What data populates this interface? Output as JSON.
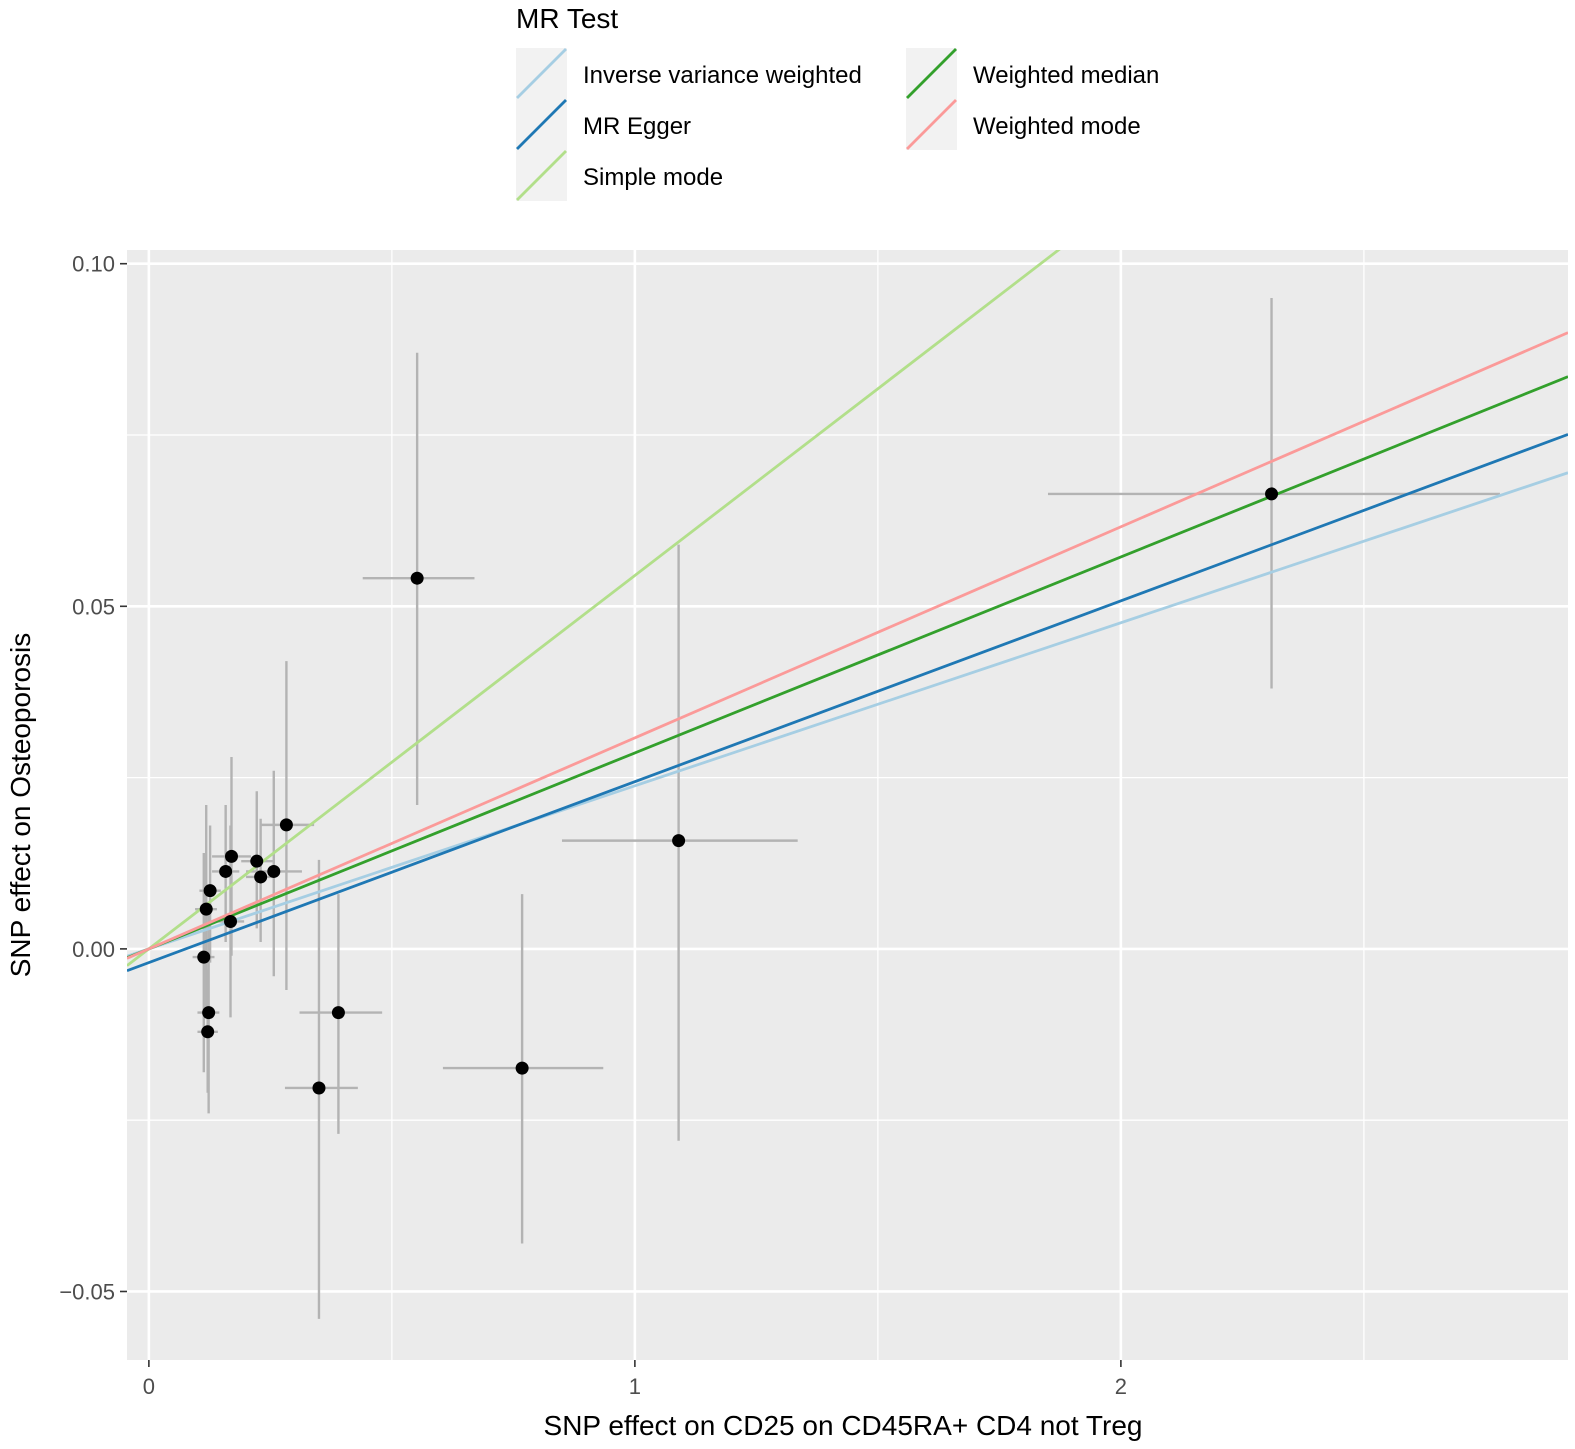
{
  "chart_data": {
    "type": "scatter",
    "xlabel": "SNP effect on CD25 on CD45RA+ CD4 not Treg",
    "ylabel": "SNP effect on Osteoporosis",
    "xlim": [
      -0.045,
      2.92
    ],
    "ylim": [
      -0.06,
      0.102
    ],
    "x_ticks": [
      0,
      1,
      2
    ],
    "x_tick_labels": [
      "0",
      "1",
      "2"
    ],
    "x_minor_ticks": [
      0.5,
      1.5,
      2.5
    ],
    "y_ticks": [
      -0.05,
      0.0,
      0.05,
      0.1
    ],
    "y_tick_labels": [
      "−0.05",
      "0.00",
      "0.05",
      "0.10"
    ],
    "y_minor_ticks": [
      -0.025,
      0.025,
      0.075
    ],
    "grid": true,
    "legend": {
      "title": "MR Test",
      "position": "top",
      "columns": [
        [
          "Inverse variance weighted",
          "MR Egger",
          "Simple mode"
        ],
        [
          "Weighted median",
          "Weighted mode"
        ]
      ]
    },
    "lines": [
      {
        "name": "Inverse variance weighted",
        "color": "#a6cee3",
        "intercept": 0.0,
        "slope": 0.0238
      },
      {
        "name": "MR Egger",
        "color": "#1f78b4",
        "intercept": -0.002,
        "slope": 0.0264
      },
      {
        "name": "Simple mode",
        "color": "#b2df8a",
        "intercept": 0.0,
        "slope": 0.0545
      },
      {
        "name": "Weighted median",
        "color": "#33a02c",
        "intercept": 0.0,
        "slope": 0.0286
      },
      {
        "name": "Weighted mode",
        "color": "#fb9a99",
        "intercept": 0.0,
        "slope": 0.0308
      }
    ],
    "points": [
      {
        "x": 0.113,
        "y": -0.0012,
        "x_lo": 0.09,
        "x_hi": 0.135,
        "y_lo": -0.018,
        "y_hi": 0.014
      },
      {
        "x": 0.118,
        "y": 0.0058,
        "x_lo": 0.095,
        "x_hi": 0.14,
        "y_lo": -0.009,
        "y_hi": 0.021
      },
      {
        "x": 0.123,
        "y": -0.0093,
        "x_lo": 0.1,
        "x_hi": 0.145,
        "y_lo": -0.024,
        "y_hi": 0.006
      },
      {
        "x": 0.121,
        "y": -0.0121,
        "x_lo": 0.1,
        "x_hi": 0.142,
        "y_lo": -0.021,
        "y_hi": -0.003
      },
      {
        "x": 0.126,
        "y": 0.0085,
        "x_lo": 0.104,
        "x_hi": 0.148,
        "y_lo": -0.002,
        "y_hi": 0.018
      },
      {
        "x": 0.158,
        "y": 0.0113,
        "x_lo": 0.13,
        "x_hi": 0.186,
        "y_lo": 0.001,
        "y_hi": 0.021
      },
      {
        "x": 0.17,
        "y": 0.0135,
        "x_lo": 0.13,
        "x_hi": 0.21,
        "y_lo": -0.001,
        "y_hi": 0.028
      },
      {
        "x": 0.168,
        "y": 0.004,
        "x_lo": 0.14,
        "x_hi": 0.196,
        "y_lo": -0.01,
        "y_hi": 0.018
      },
      {
        "x": 0.222,
        "y": 0.0128,
        "x_lo": 0.19,
        "x_hi": 0.255,
        "y_lo": 0.003,
        "y_hi": 0.023
      },
      {
        "x": 0.23,
        "y": 0.0105,
        "x_lo": 0.2,
        "x_hi": 0.26,
        "y_lo": 0.001,
        "y_hi": 0.019
      },
      {
        "x": 0.257,
        "y": 0.0113,
        "x_lo": 0.2,
        "x_hi": 0.315,
        "y_lo": -0.004,
        "y_hi": 0.026
      },
      {
        "x": 0.283,
        "y": 0.0181,
        "x_lo": 0.23,
        "x_hi": 0.34,
        "y_lo": -0.006,
        "y_hi": 0.042
      },
      {
        "x": 0.35,
        "y": -0.0203,
        "x_lo": 0.28,
        "x_hi": 0.43,
        "y_lo": -0.054,
        "y_hi": 0.013
      },
      {
        "x": 0.39,
        "y": -0.0093,
        "x_lo": 0.31,
        "x_hi": 0.48,
        "y_lo": -0.027,
        "y_hi": 0.008
      },
      {
        "x": 0.552,
        "y": 0.0541,
        "x_lo": 0.44,
        "x_hi": 0.67,
        "y_lo": 0.021,
        "y_hi": 0.087
      },
      {
        "x": 0.768,
        "y": -0.0174,
        "x_lo": 0.605,
        "x_hi": 0.935,
        "y_lo": -0.043,
        "y_hi": 0.008
      },
      {
        "x": 1.09,
        "y": 0.0158,
        "x_lo": 0.85,
        "x_hi": 1.335,
        "y_lo": -0.028,
        "y_hi": 0.059
      },
      {
        "x": 2.31,
        "y": 0.0664,
        "x_lo": 1.85,
        "x_hi": 2.78,
        "y_lo": 0.038,
        "y_hi": 0.095
      }
    ]
  }
}
